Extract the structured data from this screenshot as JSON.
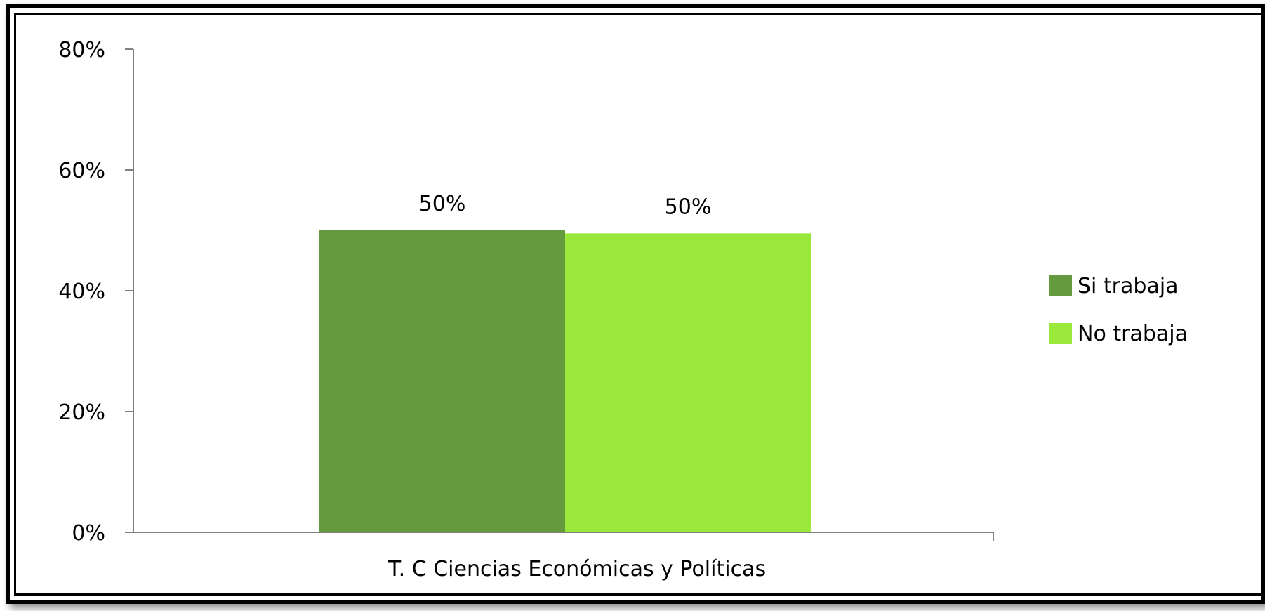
{
  "chart_data": {
    "type": "bar",
    "title": "",
    "xlabel": "",
    "ylabel": "",
    "categories": [
      "T. C Ciencias Económicas y Políticas"
    ],
    "series": [
      {
        "name": "Si trabaja",
        "values": [
          50
        ],
        "label": "50%",
        "color": "#659a3e"
      },
      {
        "name": "No trabaja",
        "values": [
          49.5
        ],
        "label": "50%",
        "color": "#99e83a"
      }
    ],
    "ylim": [
      0,
      80
    ],
    "yticks": [
      {
        "value": 0,
        "label": "0%"
      },
      {
        "value": 20,
        "label": "20%"
      },
      {
        "value": 40,
        "label": "40%"
      },
      {
        "value": 60,
        "label": "60%"
      },
      {
        "value": 80,
        "label": "80%"
      }
    ],
    "grid": false,
    "legend_position": "right"
  }
}
